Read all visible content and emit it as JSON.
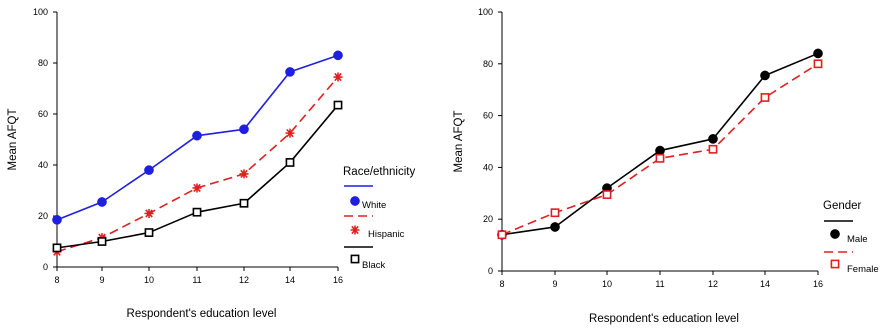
{
  "chart_data": [
    {
      "type": "line",
      "x": [
        8,
        9,
        10,
        11,
        12,
        14,
        16
      ],
      "xlabel": "Respondent's education level",
      "ylabel": "Mean AFQT",
      "ylim": [
        0,
        100
      ],
      "yticks": [
        0,
        20,
        40,
        60,
        80,
        100
      ],
      "legend_title": "Race/ethnicity",
      "legend_position": "right",
      "series": [
        {
          "name": "White",
          "values": [
            18.5,
            25.5,
            38,
            51.5,
            54,
            76.5,
            83
          ],
          "color": "#1f1fe0",
          "dash": "solid",
          "marker": "filled-circle"
        },
        {
          "name": "Hispanic",
          "values": [
            6,
            11.5,
            21,
            31,
            36.5,
            52.5,
            74.5
          ],
          "color": "#e02020",
          "dash": "dashed",
          "marker": "asterisk"
        },
        {
          "name": "Black",
          "values": [
            7.5,
            10,
            13.5,
            21.5,
            25,
            41,
            63.5
          ],
          "color": "#000000",
          "dash": "solid",
          "marker": "open-square"
        }
      ]
    },
    {
      "type": "line",
      "x": [
        8,
        9,
        10,
        11,
        12,
        14,
        16
      ],
      "xlabel": "Respondent's education level",
      "ylabel": "Mean AFQT",
      "ylim": [
        0,
        100
      ],
      "yticks": [
        0,
        20,
        40,
        60,
        80,
        100
      ],
      "legend_title": "Gender",
      "legend_position": "right",
      "series": [
        {
          "name": "Male",
          "values": [
            14,
            17,
            32,
            46.5,
            51,
            75.5,
            84
          ],
          "color": "#000000",
          "dash": "solid",
          "marker": "filled-circle"
        },
        {
          "name": "Female",
          "values": [
            14,
            22.5,
            29.5,
            43.5,
            47,
            67,
            80
          ],
          "color": "#e02020",
          "dash": "dashed",
          "marker": "open-square"
        }
      ]
    }
  ]
}
